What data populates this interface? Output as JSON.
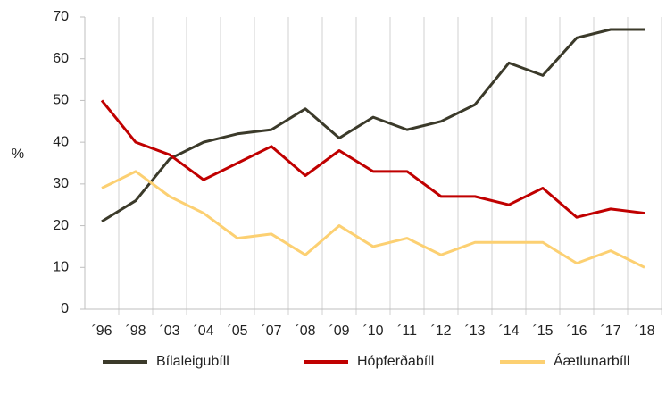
{
  "chart_data": {
    "type": "line",
    "y_label": "%",
    "categories": [
      "´96",
      "´98",
      "´03",
      "´04",
      "´05",
      "´07",
      "´08",
      "´09",
      "´10",
      "´11",
      "´12",
      "´13",
      "´14",
      "´15",
      "´16",
      "´17",
      "´18"
    ],
    "series": [
      {
        "name": "Bílaleigubíll",
        "color": "#3b3a2a",
        "values": [
          21,
          26,
          36,
          40,
          42,
          43,
          48,
          41,
          46,
          43,
          45,
          49,
          59,
          56,
          65,
          67,
          67
        ]
      },
      {
        "name": "Hópferðabíll",
        "color": "#c00000",
        "values": [
          50,
          40,
          37,
          31,
          35,
          39,
          32,
          38,
          33,
          33,
          27,
          27,
          25,
          29,
          22,
          24,
          23
        ]
      },
      {
        "name": "Áætlunarbíll",
        "color": "#fcd072",
        "values": [
          29,
          33,
          27,
          23,
          17,
          18,
          13,
          20,
          15,
          17,
          13,
          16,
          16,
          16,
          11,
          14,
          10
        ]
      }
    ],
    "ylim": [
      0,
      70
    ],
    "yticks": [
      0,
      10,
      20,
      30,
      40,
      50,
      60,
      70
    ],
    "grid": true,
    "legend": "bottom"
  }
}
